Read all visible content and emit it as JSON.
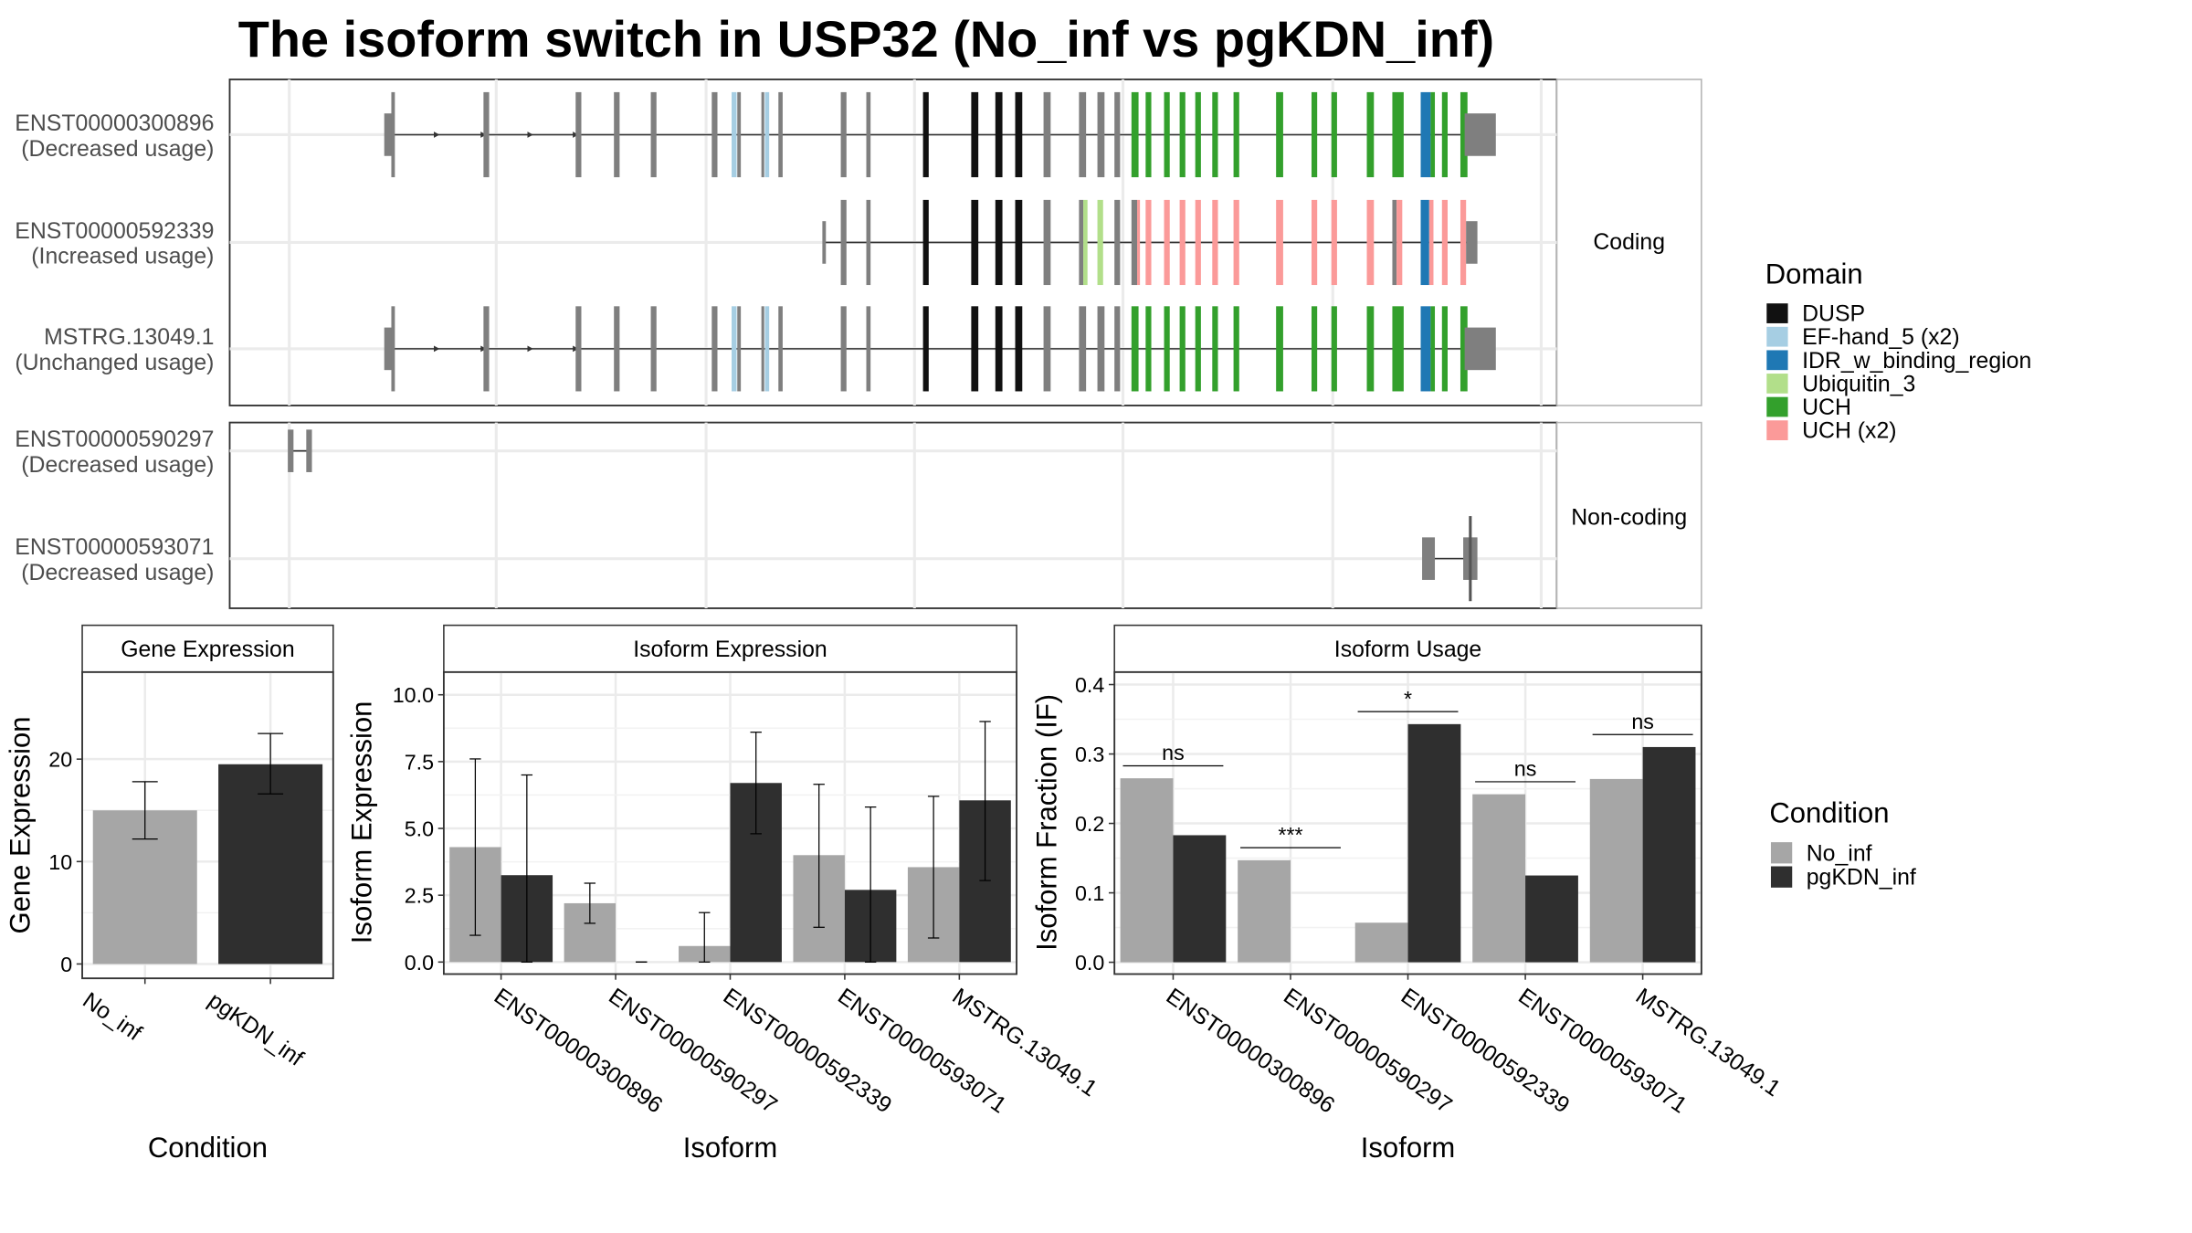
{
  "page_title": "The isoform switch in USP32 (No_inf vs pgKDN_inf)",
  "structure": {
    "facets": [
      {
        "label": "Coding",
        "transcripts": [
          {
            "name": "ENST00000300896",
            "usage": "(Decreased usage)"
          },
          {
            "name": "ENST00000592339",
            "usage": "(Increased usage)"
          },
          {
            "name": "MSTRG.13049.1",
            "usage": "(Unchanged usage)"
          }
        ]
      },
      {
        "label": "Non-coding",
        "transcripts": [
          {
            "name": "ENST00000590297",
            "usage": "(Decreased usage)"
          },
          {
            "name": "ENST00000593071",
            "usage": "(Decreased usage)"
          }
        ]
      }
    ]
  },
  "domain_legend": {
    "title": "Domain",
    "items": [
      {
        "label": "DUSP",
        "color": "#111111"
      },
      {
        "label": "EF-hand_5 (x2)",
        "color": "#a6cee3"
      },
      {
        "label": "IDR_w_binding_region",
        "color": "#1f78b4"
      },
      {
        "label": "Ubiquitin_3",
        "color": "#b2df8a"
      },
      {
        "label": "UCH",
        "color": "#33a02c"
      },
      {
        "label": "UCH (x2)",
        "color": "#fb9a99"
      }
    ]
  },
  "condition_legend": {
    "title": "Condition",
    "items": [
      {
        "label": "No_inf",
        "color": "#a6a6a6"
      },
      {
        "label": "pgKDN_inf",
        "color": "#2f2f2f"
      }
    ]
  },
  "chart_data": [
    {
      "type": "bar",
      "title": "Gene Expression",
      "xlabel": "Condition",
      "ylabel": "Gene Expression",
      "categories": [
        "No_inf",
        "pgKDN_inf"
      ],
      "values": [
        15.0,
        19.5
      ],
      "error_low": [
        12.2,
        16.6
      ],
      "error_high": [
        17.8,
        22.5
      ],
      "ylim": [
        -1.4,
        28.5
      ],
      "yticks": [
        0,
        10,
        20
      ],
      "colors": [
        "#a6a6a6",
        "#2f2f2f"
      ]
    },
    {
      "type": "bar",
      "title": "Isoform Expression",
      "xlabel": "Isoform",
      "ylabel": "Isoform Expression",
      "categories": [
        "ENST00000300896",
        "ENST00000590297",
        "ENST00000592339",
        "ENST00000593071",
        "MSTRG.13049.1"
      ],
      "series": [
        {
          "name": "No_inf",
          "values": [
            4.3,
            2.2,
            0.6,
            4.0,
            3.55
          ],
          "error_low": [
            1.0,
            1.45,
            0.0,
            1.3,
            0.9
          ],
          "error_high": [
            7.6,
            2.95,
            1.85,
            6.65,
            6.2
          ]
        },
        {
          "name": "pgKDN_inf",
          "values": [
            3.25,
            0.0,
            6.7,
            2.7,
            6.05
          ],
          "error_low": [
            0.0,
            0.0,
            4.8,
            0.0,
            3.05
          ],
          "error_high": [
            7.0,
            0.0,
            8.6,
            5.8,
            9.0
          ]
        }
      ],
      "ylim": [
        -0.45,
        10.85
      ],
      "yticks": [
        "0.0",
        "2.5",
        "5.0",
        "7.5",
        "10.0"
      ]
    },
    {
      "type": "bar",
      "title": "Isoform Usage",
      "xlabel": "Isoform",
      "ylabel": "Isoform Fraction (IF)",
      "categories": [
        "ENST00000300896",
        "ENST00000590297",
        "ENST00000592339",
        "ENST00000593071",
        "MSTRG.13049.1"
      ],
      "series": [
        {
          "name": "No_inf",
          "values": [
            0.265,
            0.147,
            0.057,
            0.242,
            0.264
          ]
        },
        {
          "name": "pgKDN_inf",
          "values": [
            0.183,
            0.0,
            0.343,
            0.125,
            0.31
          ]
        }
      ],
      "significance": [
        "ns",
        "***",
        "*",
        "ns",
        "ns"
      ],
      "significance_level": [
        0.283,
        0.165,
        0.361,
        0.26,
        0.328
      ],
      "ylim": [
        -0.017,
        0.418
      ],
      "yticks": [
        "0.0",
        "0.1",
        "0.2",
        "0.3",
        "0.4"
      ]
    }
  ]
}
